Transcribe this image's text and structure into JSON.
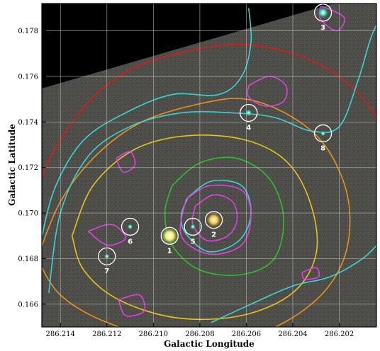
{
  "chart_data": {
    "type": "scatter",
    "title": "",
    "xlabel": "Galactic Longitude",
    "ylabel": "Galactic Latitude",
    "x_reversed": true,
    "xlim": [
      286.2148,
      286.2004
    ],
    "ylim": [
      0.165,
      0.1792
    ],
    "grid": true,
    "x_ticks": [
      {
        "value": 286.214,
        "label": "286.214"
      },
      {
        "value": 286.212,
        "label": "286.212"
      },
      {
        "value": 286.21,
        "label": "286.210"
      },
      {
        "value": 286.208,
        "label": "286.208"
      },
      {
        "value": 286.206,
        "label": "286.206"
      },
      {
        "value": 286.204,
        "label": "286.204"
      },
      {
        "value": 286.202,
        "label": "286.202"
      }
    ],
    "y_ticks": [
      {
        "value": 0.166,
        "label": "0.166"
      },
      {
        "value": 0.168,
        "label": "0.168"
      },
      {
        "value": 0.17,
        "label": "0.170"
      },
      {
        "value": 0.172,
        "label": "0.172"
      },
      {
        "value": 0.174,
        "label": "0.174"
      },
      {
        "value": 0.176,
        "label": "0.176"
      },
      {
        "value": 0.178,
        "label": "0.178"
      }
    ],
    "sources": [
      {
        "label": "1",
        "x": 286.2093,
        "y": 0.169
      },
      {
        "label": "2",
        "x": 286.2074,
        "y": 0.1697
      },
      {
        "label": "3",
        "x": 286.2027,
        "y": 0.1788
      },
      {
        "label": "4",
        "x": 286.2059,
        "y": 0.1744
      },
      {
        "label": "5",
        "x": 286.2083,
        "y": 0.1694
      },
      {
        "label": "6",
        "x": 286.211,
        "y": 0.1694
      },
      {
        "label": "7",
        "x": 286.212,
        "y": 0.1681
      },
      {
        "label": "8",
        "x": 286.2027,
        "y": 0.1735
      }
    ],
    "contours": [
      {
        "color": "#e01818",
        "points": [
          [
            286.2158,
            0.1666
          ],
          [
            286.215,
            0.171
          ],
          [
            286.2135,
            0.174
          ],
          [
            286.2115,
            0.176
          ],
          [
            286.209,
            0.177
          ],
          [
            286.206,
            0.1774
          ],
          [
            286.203,
            0.1766
          ],
          [
            286.2008,
            0.1748
          ],
          [
            286.1995,
            0.172
          ],
          [
            286.199,
            0.169
          ],
          [
            286.1998,
            0.1662
          ]
        ]
      },
      {
        "color": "#e8901a",
        "points": [
          [
            286.215,
            0.168
          ],
          [
            286.214,
            0.1705
          ],
          [
            286.2125,
            0.1725
          ],
          [
            286.2105,
            0.174
          ],
          [
            286.208,
            0.1748
          ],
          [
            286.206,
            0.175
          ],
          [
            286.204,
            0.1742
          ],
          [
            286.2025,
            0.1728
          ],
          [
            286.2016,
            0.1705
          ],
          [
            286.2018,
            0.168
          ],
          [
            286.2032,
            0.166
          ],
          [
            286.2058,
            0.1646
          ],
          [
            286.209,
            0.1644
          ],
          [
            286.212,
            0.1652
          ],
          [
            286.214,
            0.1664
          ],
          [
            286.215,
            0.168
          ]
        ]
      },
      {
        "color": "#e6c21a",
        "points": [
          [
            286.2135,
            0.169
          ],
          [
            286.2126,
            0.1712
          ],
          [
            286.2108,
            0.1728
          ],
          [
            286.2085,
            0.1734
          ],
          [
            286.206,
            0.1732
          ],
          [
            286.2042,
            0.1722
          ],
          [
            286.2032,
            0.1703
          ],
          [
            286.203,
            0.1682
          ],
          [
            286.204,
            0.1665
          ],
          [
            286.2062,
            0.1655
          ],
          [
            286.209,
            0.1654
          ],
          [
            286.2115,
            0.1662
          ],
          [
            286.213,
            0.1675
          ],
          [
            286.2135,
            0.169
          ]
        ]
      },
      {
        "color": "#2dbe2d",
        "points": [
          [
            286.2092,
            0.1712
          ],
          [
            286.208,
            0.1722
          ],
          [
            286.2064,
            0.1724
          ],
          [
            286.205,
            0.1715
          ],
          [
            286.2044,
            0.1698
          ],
          [
            286.2048,
            0.168
          ],
          [
            286.2062,
            0.1673
          ],
          [
            286.208,
            0.1675
          ],
          [
            286.2092,
            0.1686
          ],
          [
            286.2095,
            0.17
          ],
          [
            286.2092,
            0.1712
          ]
        ]
      },
      {
        "color": "#38d4d4",
        "points": [
          [
            286.2085,
            0.1707
          ],
          [
            286.2075,
            0.1714
          ],
          [
            286.2062,
            0.1712
          ],
          [
            286.2058,
            0.17
          ],
          [
            286.2063,
            0.1688
          ],
          [
            286.2076,
            0.1683
          ],
          [
            286.2086,
            0.1691
          ],
          [
            286.2088,
            0.1699
          ],
          [
            286.2085,
            0.1707
          ]
        ]
      },
      {
        "color": "#38d4d4",
        "points": [
          [
            286.2145,
            0.1665
          ],
          [
            286.214,
            0.17
          ],
          [
            286.2128,
            0.1725
          ],
          [
            286.211,
            0.1738
          ],
          [
            286.2088,
            0.1744
          ],
          [
            286.2066,
            0.1744
          ],
          [
            286.2048,
            0.1742
          ],
          [
            286.2032,
            0.1736
          ],
          [
            286.202,
            0.1738
          ],
          [
            286.2012,
            0.1758
          ],
          [
            286.2006,
            0.1778
          ],
          [
            286.2,
            0.179
          ]
        ]
      },
      {
        "color": "#38d4d4",
        "points": [
          [
            286.2059,
            0.179
          ],
          [
            286.2058,
            0.1775
          ],
          [
            286.2062,
            0.176
          ],
          [
            286.2072,
            0.1752
          ],
          [
            286.2092,
            0.1752
          ],
          [
            286.2112,
            0.1744
          ],
          [
            286.213,
            0.1732
          ],
          [
            286.2142,
            0.1712
          ],
          [
            286.2148,
            0.169
          ]
        ]
      },
      {
        "color": "#38d4d4",
        "points": [
          [
            286.2075,
            0.1652
          ],
          [
            286.2058,
            0.166
          ],
          [
            286.204,
            0.1668
          ],
          [
            286.2024,
            0.1672
          ],
          [
            286.201,
            0.168
          ],
          [
            286.2002,
            0.1688
          ]
        ]
      },
      {
        "color": "#e040e0",
        "points": [
          [
            286.2082,
            0.1703
          ],
          [
            286.2074,
            0.1708
          ],
          [
            286.2066,
            0.1705
          ],
          [
            286.2064,
            0.1697
          ],
          [
            286.2068,
            0.169
          ],
          [
            286.2077,
            0.1688
          ],
          [
            286.2083,
            0.1695
          ],
          [
            286.2082,
            0.1703
          ]
        ]
      },
      {
        "color": "#e040e0",
        "points": [
          [
            286.2086,
            0.1706
          ],
          [
            286.2076,
            0.1712
          ],
          [
            286.2062,
            0.171
          ],
          [
            286.2058,
            0.1699
          ],
          [
            286.2062,
            0.1686
          ],
          [
            286.2076,
            0.1682
          ],
          [
            286.2088,
            0.169
          ],
          [
            286.2086,
            0.1706
          ]
        ]
      },
      {
        "color": "#e040e0",
        "points": [
          [
            286.2059,
            0.1756
          ],
          [
            286.205,
            0.176
          ],
          [
            286.2043,
            0.1756
          ],
          [
            286.2044,
            0.1749
          ],
          [
            286.2052,
            0.1747
          ],
          [
            286.2059,
            0.1751
          ],
          [
            286.2059,
            0.1756
          ]
        ]
      },
      {
        "color": "#e040e0",
        "points": [
          [
            286.2116,
            0.1724
          ],
          [
            286.211,
            0.1727
          ],
          [
            286.2108,
            0.1721
          ],
          [
            286.2113,
            0.1718
          ],
          [
            286.2116,
            0.1724
          ]
        ]
      },
      {
        "color": "#e040e0",
        "points": [
          [
            286.2128,
            0.1692
          ],
          [
            286.2118,
            0.1695
          ],
          [
            286.2112,
            0.1689
          ],
          [
            286.212,
            0.1686
          ],
          [
            286.2128,
            0.1692
          ]
        ]
      },
      {
        "color": "#e040e0",
        "points": [
          [
            286.2115,
            0.1662
          ],
          [
            286.2106,
            0.1664
          ],
          [
            286.2104,
            0.1657
          ],
          [
            286.2112,
            0.1655
          ],
          [
            286.2115,
            0.1662
          ]
        ]
      },
      {
        "color": "#e040e0",
        "points": [
          [
            286.2028,
            0.1791
          ],
          [
            286.2018,
            0.1786
          ],
          [
            286.2021,
            0.178
          ],
          [
            286.2028,
            0.1785
          ],
          [
            286.2028,
            0.1791
          ]
        ]
      },
      {
        "color": "#e040e0",
        "points": [
          [
            286.2036,
            0.1674
          ],
          [
            286.203,
            0.1676
          ],
          [
            286.2029,
            0.1672
          ],
          [
            286.2035,
            0.1671
          ],
          [
            286.2036,
            0.1674
          ]
        ]
      }
    ]
  }
}
